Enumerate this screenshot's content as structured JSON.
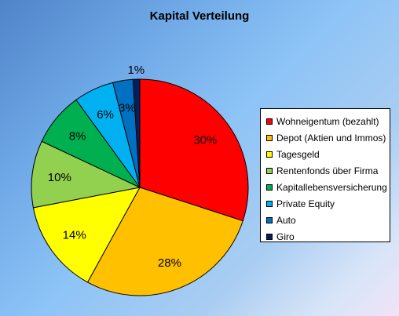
{
  "chart_data": {
    "type": "pie",
    "title": "Kapital Verteilung",
    "legend_position": "right",
    "slices": [
      {
        "name": "Wohneigentum (bezahlt)",
        "value": 30,
        "label": "30%",
        "color": "#ff0000"
      },
      {
        "name": "Depot (Aktien und Immos)",
        "value": 28,
        "label": "28%",
        "color": "#ffc000"
      },
      {
        "name": "Tagesgeld",
        "value": 14,
        "label": "14%",
        "color": "#ffff00"
      },
      {
        "name": "Rentenfonds über Firma",
        "value": 10,
        "label": "10%",
        "color": "#92d050"
      },
      {
        "name": "Kapitallebensversicherung",
        "value": 8,
        "label": "8%",
        "color": "#00b050"
      },
      {
        "name": "Private Equity",
        "value": 6,
        "label": "6%",
        "color": "#00b0f0"
      },
      {
        "name": "Auto",
        "value": 3,
        "label": "3%",
        "color": "#0070c0"
      },
      {
        "name": "Giro",
        "value": 1,
        "label": "1%",
        "color": "#002060"
      }
    ]
  }
}
